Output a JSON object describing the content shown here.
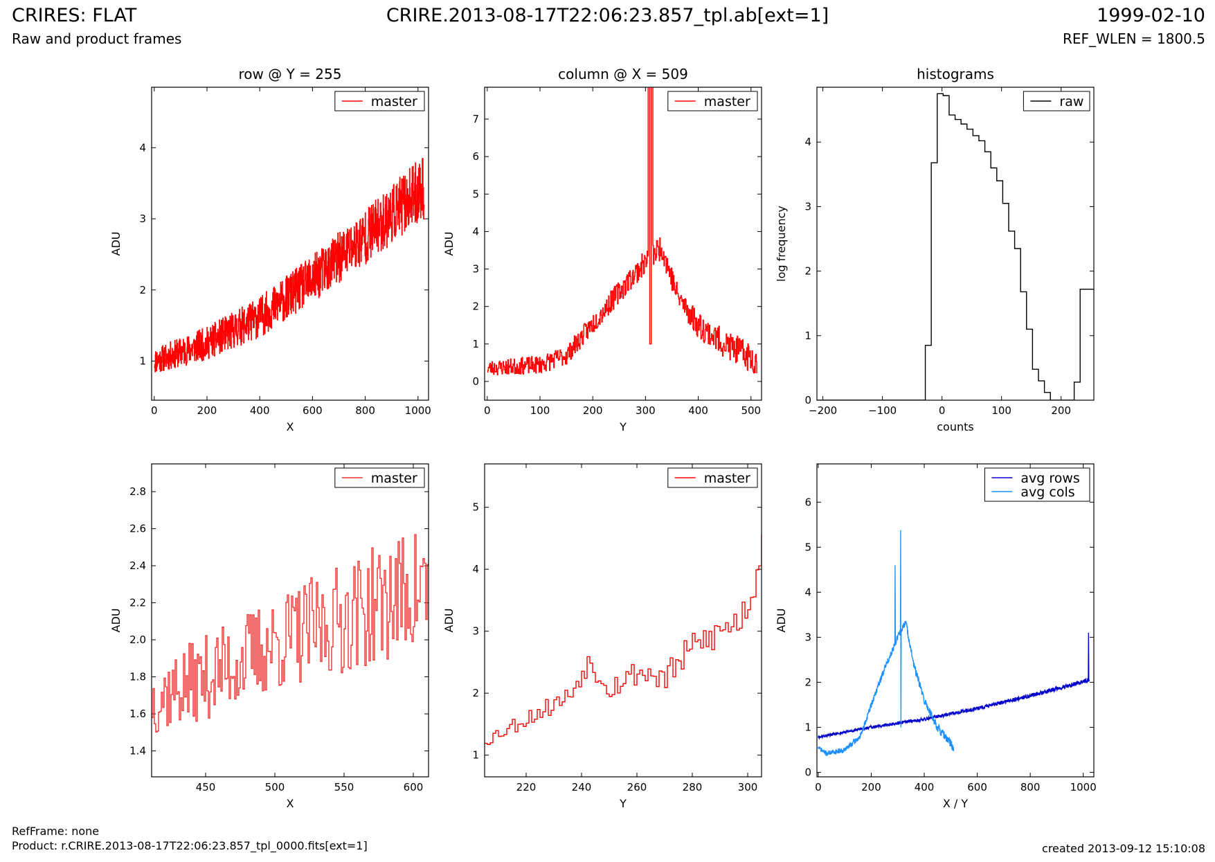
{
  "header": {
    "title": "CRIRES: FLAT",
    "subtitle": "Raw and product frames",
    "file": "CRIRE.2013-08-17T22:06:23.857_tpl.ab[ext=1]",
    "date": "1999-02-10",
    "ref_wlen": "REF_WLEN = 1800.5"
  },
  "footer": {
    "refframe": "RefFrame: none",
    "product": "Product: r.CRIRE.2013-08-17T22:06:23.857_tpl_0000.fits[ext=1]",
    "created": "created 2013-09-12 15:10:08"
  },
  "colors": {
    "master": "#ff0000",
    "master_zoom": "#ee3333",
    "raw": "#000000",
    "avg_rows": "#0000cc",
    "avg_cols": "#1e90ff"
  },
  "chart_data": [
    {
      "id": "row",
      "type": "line",
      "title": "row @ Y = 255",
      "xlabel": "X",
      "ylabel": "ADU",
      "xlim": [
        -10,
        1040
      ],
      "ylim": [
        0.45,
        4.85
      ],
      "xticks": [
        0,
        200,
        400,
        600,
        800,
        1000
      ],
      "yticks": [
        1,
        2,
        3,
        4
      ],
      "legend": "top-right",
      "series": [
        {
          "name": "master",
          "color_key": "master",
          "step": true,
          "shape": "ramp",
          "x_range": [
            0,
            1023
          ],
          "n": 1024,
          "trend": [
            [
              0,
              1.0
            ],
            [
              200,
              1.25
            ],
            [
              400,
              1.62
            ],
            [
              600,
              2.15
            ],
            [
              800,
              2.75
            ],
            [
              1023,
              3.45
            ]
          ],
          "noise": [
            0.18,
            0.45
          ],
          "seed": 11
        }
      ]
    },
    {
      "id": "col",
      "type": "line",
      "title": "column @ X = 509",
      "xlabel": "Y",
      "ylabel": "ADU",
      "xlim": [
        -5,
        520
      ],
      "ylim": [
        -0.5,
        7.85
      ],
      "xticks": [
        0,
        100,
        200,
        300,
        400,
        500
      ],
      "yticks": [
        0,
        1,
        2,
        3,
        4,
        5,
        6,
        7
      ],
      "legend": "top-right",
      "series": [
        {
          "name": "master",
          "color_key": "master",
          "step": true,
          "shape": "peak",
          "x_range": [
            0,
            511
          ],
          "n": 512,
          "trend": [
            [
              0,
              0.35
            ],
            [
              100,
              0.45
            ],
            [
              150,
              0.7
            ],
            [
              200,
              1.55
            ],
            [
              250,
              2.4
            ],
            [
              300,
              3.2
            ],
            [
              330,
              3.6
            ],
            [
              360,
              2.3
            ],
            [
              400,
              1.5
            ],
            [
              450,
              1.0
            ],
            [
              511,
              0.55
            ]
          ],
          "noise": [
            0.2,
            0.4
          ],
          "seed": 23,
          "spikes": [
            [
              305,
              8.5
            ],
            [
              306,
              8.5
            ],
            [
              307,
              8.5
            ],
            [
              308,
              1.0
            ],
            [
              309,
              1.0
            ],
            [
              310,
              1.0
            ],
            [
              311,
              8.5
            ],
            [
              312,
              8.5
            ],
            [
              313,
              8.5
            ]
          ]
        }
      ]
    },
    {
      "id": "hist",
      "type": "histogram",
      "title": "histograms",
      "xlabel": "counts",
      "ylabel": "log frequency",
      "xlim": [
        -210,
        255
      ],
      "ylim": [
        0,
        4.85
      ],
      "xticks": [
        -200,
        -100,
        0,
        100,
        200
      ],
      "xtick_labels": [
        "−200",
        "−100",
        "0",
        "100",
        "200"
      ],
      "yticks": [
        0,
        1,
        2,
        3,
        4
      ],
      "legend": "top-right",
      "series": [
        {
          "name": "raw",
          "color_key": "raw",
          "edges": [
            -210,
            -28,
            -18,
            -8,
            2,
            12,
            22,
            32,
            42,
            52,
            62,
            72,
            82,
            92,
            102,
            112,
            122,
            132,
            142,
            152,
            162,
            172,
            182,
            192,
            202,
            212,
            222,
            232,
            242,
            255
          ],
          "values": [
            0,
            0.85,
            3.68,
            4.75,
            4.72,
            4.42,
            4.35,
            4.28,
            4.2,
            4.1,
            4.02,
            3.85,
            3.6,
            3.4,
            3.05,
            2.62,
            2.35,
            1.68,
            1.1,
            0.48,
            0.3,
            0.12,
            0.0,
            0.0,
            0.0,
            0.0,
            0.28,
            1.72,
            1.72
          ]
        }
      ]
    },
    {
      "id": "rowzoom",
      "type": "line",
      "title": "",
      "xlabel": "X",
      "ylabel": "ADU",
      "xlim": [
        411,
        611
      ],
      "ylim": [
        1.26,
        2.95
      ],
      "xticks": [
        450,
        500,
        550,
        600
      ],
      "yticks": [
        1.4,
        1.6,
        1.8,
        2.0,
        2.2,
        2.4,
        2.6,
        2.8
      ],
      "ytick_labels": [
        "1.4",
        "1.6",
        "1.8",
        "2.0",
        "2.2",
        "2.4",
        "2.6",
        "2.8"
      ],
      "legend": "top-right",
      "series": [
        {
          "name": "master",
          "color_key": "master_zoom",
          "step": true,
          "shape": "ramp",
          "x_range": [
            411,
            611
          ],
          "n": 201,
          "trend": [
            [
              411,
              1.68
            ],
            [
              450,
              1.8
            ],
            [
              500,
              1.98
            ],
            [
              550,
              2.12
            ],
            [
              611,
              2.3
            ]
          ],
          "noise": [
            0.2,
            0.35
          ],
          "seed": 37
        }
      ]
    },
    {
      "id": "colzoom",
      "type": "line",
      "title": "",
      "xlabel": "Y",
      "ylabel": "ADU",
      "xlim": [
        205,
        305
      ],
      "ylim": [
        0.65,
        5.7
      ],
      "xticks": [
        220,
        240,
        260,
        280,
        300
      ],
      "yticks": [
        1,
        2,
        3,
        4,
        5
      ],
      "legend": "top-right",
      "series": [
        {
          "name": "master",
          "color_key": "master",
          "step": true,
          "shape": "ramp",
          "x_range": [
            205,
            305
          ],
          "n": 101,
          "trend": [
            [
              205,
              1.25
            ],
            [
              220,
              1.6
            ],
            [
              235,
              1.95
            ],
            [
              242,
              2.5
            ],
            [
              250,
              2.1
            ],
            [
              260,
              2.35
            ],
            [
              270,
              2.25
            ],
            [
              280,
              2.75
            ],
            [
              290,
              3.0
            ],
            [
              297,
              3.2
            ],
            [
              302,
              3.7
            ],
            [
              305,
              4.6
            ]
          ],
          "noise": [
            0.12,
            0.3
          ],
          "seed": 53
        }
      ]
    },
    {
      "id": "avg",
      "type": "line",
      "title": "",
      "xlabel": "X / Y",
      "ylabel": "ADU",
      "xlim": [
        -5,
        1040
      ],
      "ylim": [
        -0.1,
        6.85
      ],
      "xticks": [
        0,
        200,
        400,
        600,
        800,
        1000
      ],
      "yticks": [
        0,
        1,
        2,
        3,
        4,
        5,
        6
      ],
      "legend": "top-right",
      "series": [
        {
          "name": "avg rows",
          "color_key": "avg_rows",
          "step": false,
          "shape": "ramp",
          "x_range": [
            0,
            1023
          ],
          "n": 1024,
          "trend": [
            [
              0,
              0.78
            ],
            [
              200,
              1.0
            ],
            [
              400,
              1.18
            ],
            [
              600,
              1.42
            ],
            [
              800,
              1.7
            ],
            [
              1023,
              2.05
            ]
          ],
          "noise": [
            0.03,
            0.05
          ],
          "seed": 61,
          "spikes": [
            [
              1020,
              3.1
            ]
          ]
        },
        {
          "name": "avg cols",
          "color_key": "avg_cols",
          "step": false,
          "shape": "peak",
          "x_range": [
            0,
            511
          ],
          "n": 512,
          "trend": [
            [
              0,
              0.55
            ],
            [
              30,
              0.42
            ],
            [
              100,
              0.5
            ],
            [
              160,
              0.8
            ],
            [
              200,
              1.5
            ],
            [
              250,
              2.3
            ],
            [
              300,
              3.0
            ],
            [
              330,
              3.35
            ],
            [
              360,
              2.4
            ],
            [
              400,
              1.6
            ],
            [
              450,
              1.0
            ],
            [
              511,
              0.55
            ]
          ],
          "noise": [
            0.05,
            0.1
          ],
          "seed": 71,
          "spikes": [
            [
              290,
              4.6
            ],
            [
              311,
              5.38
            ],
            [
              312,
              1.0
            ]
          ]
        }
      ]
    }
  ]
}
